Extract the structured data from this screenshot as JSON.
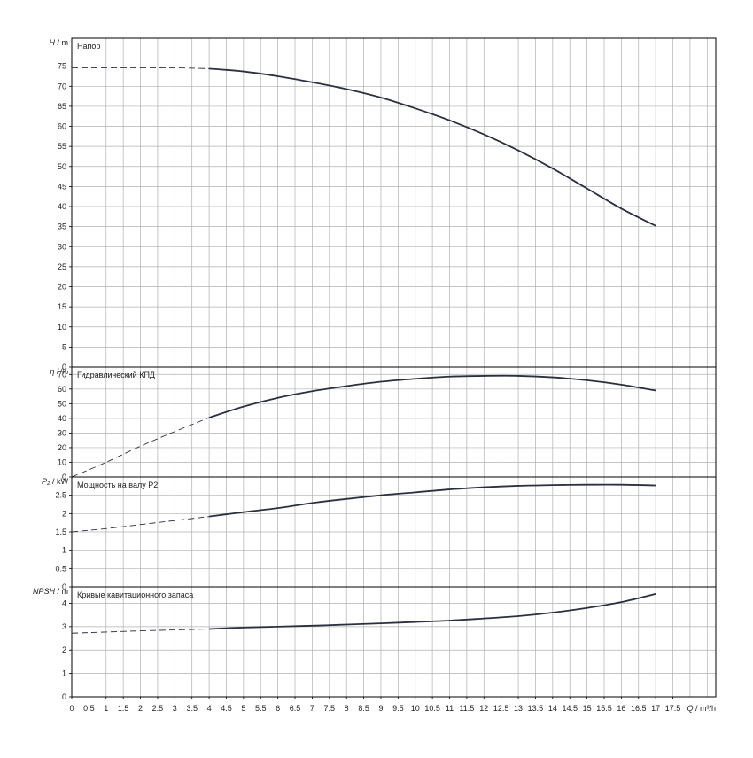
{
  "chart_data": [
    {
      "type": "line",
      "title": "Напор",
      "ylabel_symbol": "H",
      "ylabel_unit": "m",
      "ylim": [
        0,
        82
      ],
      "yticks": [
        0,
        5,
        10,
        15,
        20,
        25,
        30,
        35,
        40,
        45,
        50,
        55,
        60,
        65,
        70,
        75
      ],
      "grid": true,
      "series": [
        {
          "style": "dashed",
          "x": [
            0,
            1,
            2,
            3,
            4
          ],
          "y": [
            74.6,
            74.6,
            74.6,
            74.6,
            74.4
          ]
        },
        {
          "style": "solid",
          "x": [
            4,
            5,
            6,
            7,
            8,
            9,
            10,
            11,
            12,
            13,
            14,
            15,
            16,
            17
          ],
          "y": [
            74.4,
            73.7,
            72.5,
            71.0,
            69.3,
            67.2,
            64.5,
            61.5,
            58.0,
            54.0,
            49.5,
            44.5,
            39.5,
            35.2
          ]
        }
      ]
    },
    {
      "type": "line",
      "title": "Гидравлический КПД",
      "ylabel_symbol": "η",
      "ylabel_unit": "%",
      "ylim": [
        0,
        75
      ],
      "yticks": [
        0,
        10,
        20,
        30,
        40,
        50,
        60,
        70
      ],
      "grid": true,
      "series": [
        {
          "style": "dashed",
          "x": [
            0,
            1,
            2,
            3,
            4
          ],
          "y": [
            0,
            10,
            21,
            31,
            40.5
          ]
        },
        {
          "style": "solid",
          "x": [
            4,
            5,
            6,
            7,
            8,
            9,
            10,
            11,
            12,
            13,
            14,
            15,
            16,
            17
          ],
          "y": [
            40.5,
            48,
            54,
            58.5,
            62,
            65,
            67,
            68.5,
            69,
            69,
            68,
            66,
            63,
            59
          ]
        }
      ]
    },
    {
      "type": "line",
      "title": "Мощность на валу P2",
      "ylabel_symbol": "P₂",
      "ylabel_unit": "kW",
      "ylim": [
        0,
        3.0
      ],
      "yticks": [
        0,
        0.5,
        1,
        1.5,
        2,
        2.5
      ],
      "ytick_labels": [
        "0",
        "0.5",
        "1",
        "1.5",
        "2",
        "2.5"
      ],
      "grid": true,
      "series": [
        {
          "style": "dashed",
          "x": [
            0,
            1,
            2,
            3,
            4
          ],
          "y": [
            1.5,
            1.59,
            1.7,
            1.81,
            1.92
          ]
        },
        {
          "style": "solid",
          "x": [
            4,
            5,
            6,
            7,
            8,
            9,
            10,
            11,
            12,
            13,
            14,
            15,
            16,
            17
          ],
          "y": [
            1.92,
            2.04,
            2.15,
            2.29,
            2.4,
            2.5,
            2.58,
            2.66,
            2.72,
            2.76,
            2.78,
            2.79,
            2.79,
            2.77
          ]
        }
      ]
    },
    {
      "type": "line",
      "title": "Кривые кавитационного запаса",
      "ylabel_symbol": "NPSH",
      "ylabel_unit": "m",
      "ylim": [
        0,
        4.7
      ],
      "yticks": [
        0,
        1,
        2,
        3,
        4
      ],
      "grid": true,
      "series": [
        {
          "style": "dashed",
          "x": [
            0,
            1,
            2,
            3,
            4
          ],
          "y": [
            2.72,
            2.77,
            2.82,
            2.86,
            2.9
          ]
        },
        {
          "style": "solid",
          "x": [
            4,
            5,
            6,
            7,
            8,
            9,
            10,
            11,
            12,
            13,
            14,
            15,
            16,
            17
          ],
          "y": [
            2.9,
            2.96,
            3.0,
            3.04,
            3.09,
            3.14,
            3.2,
            3.26,
            3.35,
            3.45,
            3.6,
            3.8,
            4.05,
            4.4
          ]
        }
      ]
    }
  ],
  "x_axis": {
    "label_symbol": "Q",
    "label_unit": "m³/h",
    "xlim": [
      0,
      18.75
    ],
    "ticks": [
      0,
      0.5,
      1,
      1.5,
      2,
      2.5,
      3,
      3.5,
      4,
      4.5,
      5,
      5.5,
      6,
      6.5,
      7,
      7.5,
      8,
      8.5,
      9,
      9.5,
      10,
      10.5,
      11,
      11.5,
      12,
      12.5,
      13,
      13.5,
      14,
      14.5,
      15,
      15.5,
      16,
      16.5,
      17,
      17.5
    ],
    "tick_labels": [
      "0",
      "0.5",
      "1",
      "1.5",
      "2",
      "2.5",
      "3",
      "3.5",
      "4",
      "4.5",
      "5",
      "5.5",
      "6",
      "6.5",
      "7",
      "7.5",
      "8",
      "8.5",
      "9",
      "9.5",
      "10",
      "10.5",
      "11",
      "11.5",
      "12",
      "12.5",
      "13",
      "13.5",
      "14",
      "14.5",
      "15",
      "15.5",
      "16",
      "16.5",
      "17",
      "17.5"
    ]
  },
  "colors": {
    "curve": "#2b3040",
    "grid": "#b0b0b0",
    "frame": "#000000"
  }
}
